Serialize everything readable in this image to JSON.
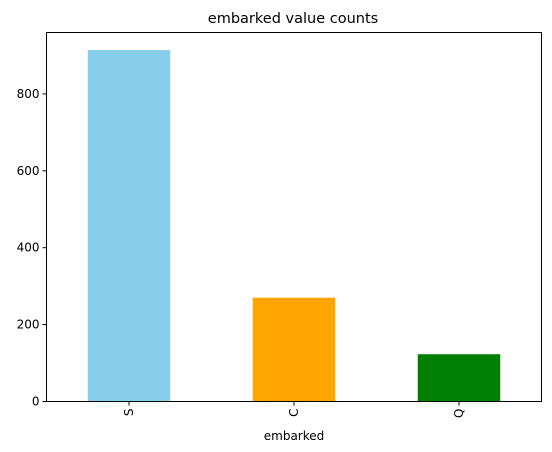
{
  "chart_data": {
    "type": "bar",
    "title": "embarked value counts",
    "xlabel": "embarked",
    "ylabel": "",
    "categories": [
      "S",
      "C",
      "Q"
    ],
    "values": [
      914,
      270,
      123
    ],
    "colors": [
      "#87ceeb",
      "#ffa500",
      "#008000"
    ],
    "ylim": [
      0,
      959.7
    ],
    "yticks": [
      0,
      200,
      400,
      600,
      800
    ],
    "ytick_labels": [
      "0",
      "200",
      "400",
      "600",
      "800"
    ],
    "xtick_rotation": "vertical",
    "grid": false,
    "legend": "none"
  }
}
